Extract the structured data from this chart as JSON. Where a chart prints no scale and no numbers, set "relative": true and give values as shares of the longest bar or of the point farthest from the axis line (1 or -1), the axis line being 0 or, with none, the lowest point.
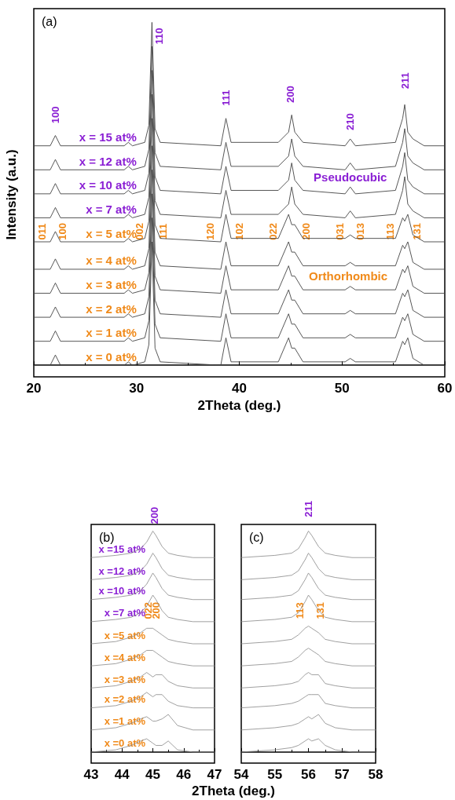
{
  "chart_data": [
    {
      "type": "line",
      "relative": true,
      "title": "(a)",
      "xlabel": "2Theta (deg.)",
      "ylabel": "Intensity (a.u.)",
      "xlim": [
        20,
        60
      ],
      "xticks": [
        20,
        30,
        40,
        50,
        60
      ],
      "legend": false,
      "grid": false,
      "marker": "none",
      "line_style": "solid",
      "x": [
        20,
        21.6,
        22.1,
        22.6,
        28.8,
        29.2,
        29.6,
        30.8,
        31.2,
        31.5,
        31.8,
        32.3,
        38.2,
        38.7,
        39.2,
        43.8,
        44.8,
        45.1,
        45.4,
        46.2,
        50.3,
        50.8,
        51.3,
        55.2,
        55.9,
        56.1,
        56.4,
        56.9,
        58,
        60
      ],
      "series": [
        {
          "name": "x = 0 at%",
          "color": "#444444",
          "values": [
            0,
            0,
            0.03,
            0,
            0,
            0.01,
            0,
            0.01,
            0.06,
            0.36,
            0.05,
            0.01,
            0,
            0.08,
            0.01,
            0.01,
            0.08,
            0.05,
            0.05,
            0.01,
            0.01,
            0.02,
            0.01,
            0.01,
            0.07,
            0.06,
            0.08,
            0.02,
            0,
            0
          ]
        },
        {
          "name": "x = 1 at%",
          "color": "#444444",
          "values": [
            0.07,
            0.07,
            0.1,
            0.07,
            0.07,
            0.08,
            0.07,
            0.08,
            0.13,
            0.43,
            0.12,
            0.08,
            0.07,
            0.15,
            0.08,
            0.08,
            0.15,
            0.12,
            0.12,
            0.08,
            0.08,
            0.09,
            0.08,
            0.08,
            0.14,
            0.13,
            0.15,
            0.09,
            0.07,
            0.07
          ]
        },
        {
          "name": "x = 2 at%",
          "color": "#444444",
          "values": [
            0.14,
            0.14,
            0.17,
            0.14,
            0.14,
            0.15,
            0.14,
            0.15,
            0.2,
            0.5,
            0.19,
            0.15,
            0.14,
            0.22,
            0.15,
            0.15,
            0.22,
            0.19,
            0.19,
            0.15,
            0.15,
            0.16,
            0.15,
            0.15,
            0.21,
            0.2,
            0.22,
            0.16,
            0.14,
            0.14
          ]
        },
        {
          "name": "x = 3 at%",
          "color": "#444444",
          "values": [
            0.21,
            0.21,
            0.24,
            0.21,
            0.21,
            0.22,
            0.21,
            0.22,
            0.27,
            0.57,
            0.26,
            0.22,
            0.21,
            0.29,
            0.22,
            0.22,
            0.29,
            0.26,
            0.26,
            0.22,
            0.22,
            0.23,
            0.22,
            0.22,
            0.28,
            0.27,
            0.29,
            0.23,
            0.21,
            0.21
          ]
        },
        {
          "name": "x = 4 at%",
          "color": "#444444",
          "values": [
            0.28,
            0.28,
            0.31,
            0.28,
            0.28,
            0.29,
            0.28,
            0.29,
            0.34,
            0.64,
            0.33,
            0.29,
            0.28,
            0.36,
            0.29,
            0.29,
            0.36,
            0.33,
            0.33,
            0.29,
            0.29,
            0.3,
            0.29,
            0.29,
            0.35,
            0.34,
            0.36,
            0.3,
            0.28,
            0.28
          ]
        },
        {
          "name": "x = 5 at%",
          "color": "#444444",
          "values": [
            0.36,
            0.36,
            0.39,
            0.36,
            0.36,
            0.37,
            0.36,
            0.37,
            0.42,
            0.72,
            0.41,
            0.37,
            0.36,
            0.44,
            0.37,
            0.37,
            0.44,
            0.41,
            0.41,
            0.37,
            0.37,
            0.38,
            0.37,
            0.37,
            0.43,
            0.42,
            0.44,
            0.38,
            0.36,
            0.36
          ]
        },
        {
          "name": "x = 7 at%",
          "color": "#444444",
          "values": [
            0.43,
            0.43,
            0.46,
            0.43,
            0.43,
            0.44,
            0.43,
            0.44,
            0.49,
            0.79,
            0.48,
            0.44,
            0.43,
            0.51,
            0.44,
            0.44,
            0.47,
            0.52,
            0.47,
            0.44,
            0.43,
            0.45,
            0.43,
            0.44,
            0.51,
            0.55,
            0.47,
            0.45,
            0.43,
            0.43
          ]
        },
        {
          "name": "x = 10 at%",
          "color": "#444444",
          "values": [
            0.5,
            0.5,
            0.53,
            0.5,
            0.5,
            0.51,
            0.5,
            0.51,
            0.56,
            0.86,
            0.55,
            0.51,
            0.5,
            0.58,
            0.51,
            0.51,
            0.54,
            0.59,
            0.54,
            0.51,
            0.5,
            0.52,
            0.5,
            0.51,
            0.58,
            0.62,
            0.54,
            0.52,
            0.5,
            0.5
          ]
        },
        {
          "name": "x = 12 at%",
          "color": "#444444",
          "values": [
            0.57,
            0.57,
            0.6,
            0.57,
            0.57,
            0.58,
            0.57,
            0.58,
            0.63,
            0.93,
            0.62,
            0.58,
            0.57,
            0.65,
            0.58,
            0.58,
            0.61,
            0.66,
            0.61,
            0.58,
            0.57,
            0.59,
            0.57,
            0.58,
            0.65,
            0.69,
            0.61,
            0.59,
            0.57,
            0.57
          ]
        },
        {
          "name": "x = 15 at%",
          "color": "#444444",
          "values": [
            0.64,
            0.64,
            0.67,
            0.64,
            0.64,
            0.65,
            0.64,
            0.65,
            0.7,
            1,
            0.69,
            0.65,
            0.64,
            0.72,
            0.65,
            0.65,
            0.68,
            0.73,
            0.68,
            0.65,
            0.64,
            0.66,
            0.64,
            0.65,
            0.72,
            0.76,
            0.68,
            0.66,
            0.64,
            0.64
          ]
        }
      ],
      "annotations": [
        "100",
        "110",
        "111",
        "200",
        "210",
        "211",
        "Pseudocubic",
        "011",
        "100",
        "002",
        "111",
        "120",
        "102",
        "022",
        "200",
        "031",
        "013",
        "113",
        "131",
        "Orthorhombic"
      ]
    },
    {
      "type": "line",
      "relative": true,
      "title": "(b)",
      "xlabel": "2Theta (deg.)",
      "xlim": [
        43,
        47
      ],
      "xticks": [
        43,
        44,
        45,
        46,
        47
      ],
      "legend": false,
      "grid": false,
      "marker": "none",
      "line_style": "solid",
      "x": [
        43,
        43.8,
        44.3,
        44.6,
        44.8,
        45.0,
        45.1,
        45.3,
        45.5,
        45.8,
        46.3,
        47
      ],
      "series": [
        {
          "name": "x =0 at%",
          "color": "#888888",
          "values": [
            0,
            0.01,
            0.03,
            0.05,
            0.06,
            0.04,
            0.03,
            0.03,
            0.05,
            0.01,
            0,
            0
          ]
        },
        {
          "name": "x =1 at%",
          "color": "#888888",
          "values": [
            0.1,
            0.11,
            0.13,
            0.15,
            0.16,
            0.14,
            0.14,
            0.15,
            0.17,
            0.12,
            0.1,
            0.1
          ]
        },
        {
          "name": "x =2 at%",
          "color": "#888888",
          "values": [
            0.2,
            0.21,
            0.23,
            0.25,
            0.27,
            0.25,
            0.26,
            0.26,
            0.23,
            0.21,
            0.2,
            0.2
          ]
        },
        {
          "name": "x =3 at%",
          "color": "#888888",
          "values": [
            0.29,
            0.3,
            0.32,
            0.34,
            0.36,
            0.34,
            0.35,
            0.35,
            0.32,
            0.3,
            0.29,
            0.29
          ]
        },
        {
          "name": "x =4 at%",
          "color": "#888888",
          "values": [
            0.39,
            0.4,
            0.42,
            0.44,
            0.46,
            0.46,
            0.45,
            0.43,
            0.41,
            0.4,
            0.39,
            0.39
          ]
        },
        {
          "name": "x =5 at%",
          "color": "#888888",
          "values": [
            0.49,
            0.5,
            0.52,
            0.54,
            0.56,
            0.56,
            0.55,
            0.53,
            0.51,
            0.5,
            0.49,
            0.49
          ]
        },
        {
          "name": "x =7 at%",
          "color": "#888888",
          "values": [
            0.59,
            0.6,
            0.61,
            0.63,
            0.66,
            0.71,
            0.69,
            0.64,
            0.61,
            0.6,
            0.59,
            0.59
          ]
        },
        {
          "name": "x =10 at%",
          "color": "#888888",
          "values": [
            0.69,
            0.7,
            0.71,
            0.73,
            0.76,
            0.81,
            0.79,
            0.74,
            0.71,
            0.7,
            0.69,
            0.69
          ]
        },
        {
          "name": "x =12 at%",
          "color": "#888888",
          "values": [
            0.78,
            0.79,
            0.8,
            0.82,
            0.85,
            0.9,
            0.88,
            0.83,
            0.8,
            0.79,
            0.78,
            0.78
          ]
        },
        {
          "name": "x =15 at%",
          "color": "#888888",
          "values": [
            0.88,
            0.89,
            0.9,
            0.92,
            0.95,
            1,
            0.98,
            0.93,
            0.9,
            0.89,
            0.88,
            0.88
          ]
        }
      ],
      "annotations": [
        "200",
        "022",
        "200"
      ]
    },
    {
      "type": "line",
      "relative": true,
      "title": "(c)",
      "xlim": [
        54,
        58
      ],
      "xticks": [
        54,
        55,
        56,
        57,
        58
      ],
      "legend": false,
      "grid": false,
      "marker": "none",
      "line_style": "solid",
      "x": [
        54,
        55,
        55.5,
        55.7,
        55.9,
        56.0,
        56.1,
        56.3,
        56.5,
        56.8,
        57.3,
        58
      ],
      "series": [
        {
          "color": "#888888",
          "values": [
            0,
            0.01,
            0.02,
            0.03,
            0.05,
            0.06,
            0.05,
            0.06,
            0.03,
            0.01,
            0,
            0
          ]
        },
        {
          "color": "#888888",
          "values": [
            0.1,
            0.11,
            0.12,
            0.13,
            0.15,
            0.16,
            0.15,
            0.17,
            0.13,
            0.11,
            0.1,
            0.1
          ]
        },
        {
          "color": "#888888",
          "values": [
            0.2,
            0.21,
            0.22,
            0.23,
            0.25,
            0.26,
            0.26,
            0.26,
            0.22,
            0.21,
            0.2,
            0.2
          ]
        },
        {
          "color": "#888888",
          "values": [
            0.29,
            0.3,
            0.31,
            0.32,
            0.35,
            0.36,
            0.35,
            0.35,
            0.31,
            0.3,
            0.29,
            0.29
          ]
        },
        {
          "color": "#888888",
          "values": [
            0.39,
            0.4,
            0.41,
            0.43,
            0.46,
            0.47,
            0.46,
            0.44,
            0.41,
            0.4,
            0.39,
            0.39
          ]
        },
        {
          "color": "#888888",
          "values": [
            0.49,
            0.5,
            0.51,
            0.53,
            0.56,
            0.57,
            0.56,
            0.54,
            0.51,
            0.5,
            0.49,
            0.49
          ]
        },
        {
          "color": "#888888",
          "values": [
            0.59,
            0.6,
            0.61,
            0.63,
            0.68,
            0.71,
            0.69,
            0.64,
            0.61,
            0.6,
            0.59,
            0.59
          ]
        },
        {
          "color": "#888888",
          "values": [
            0.69,
            0.7,
            0.71,
            0.73,
            0.78,
            0.81,
            0.79,
            0.74,
            0.71,
            0.7,
            0.69,
            0.69
          ]
        },
        {
          "color": "#888888",
          "values": [
            0.78,
            0.79,
            0.8,
            0.82,
            0.87,
            0.9,
            0.88,
            0.83,
            0.8,
            0.79,
            0.78,
            0.78
          ]
        },
        {
          "color": "#888888",
          "values": [
            0.88,
            0.89,
            0.9,
            0.92,
            0.97,
            1,
            0.98,
            0.93,
            0.9,
            0.89,
            0.88,
            0.88
          ]
        }
      ],
      "annotations": [
        "211",
        "113",
        "131"
      ]
    }
  ]
}
